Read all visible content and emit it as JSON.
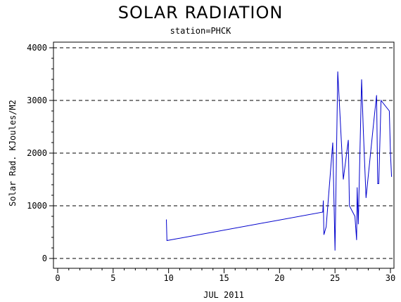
{
  "chart_data": {
    "type": "line",
    "title": "SOLAR RADIATION",
    "subtitle": "station=PHCK",
    "xlabel": "JUL 2011",
    "ylabel": "Solar Rad. KJoules/M2",
    "xlim": [
      0,
      30
    ],
    "ylim": [
      0,
      4000
    ],
    "x_ticks": [
      0,
      5,
      10,
      15,
      20,
      25,
      30
    ],
    "y_ticks": [
      0,
      1000,
      2000,
      3000,
      4000
    ],
    "y_tick_labels": [
      "0",
      "1000",
      "2000",
      "3000",
      "4000"
    ],
    "grid": "horizontal dashed",
    "series": [
      {
        "color": "#0000cc",
        "x": [
          9.8,
          9.85,
          23.9,
          23.95,
          24.0,
          24.2,
          24.8,
          25.0,
          25.25,
          25.75,
          26.2,
          26.3,
          26.8,
          26.95,
          27.0,
          27.1,
          27.4,
          27.55,
          27.8,
          28.5,
          28.75,
          28.85,
          28.95,
          29.15,
          29.9,
          30.0,
          30.1
        ],
        "y": [
          740,
          340,
          880,
          1100,
          450,
          600,
          2200,
          150,
          3550,
          1500,
          2250,
          1000,
          800,
          350,
          1350,
          650,
          3400,
          2450,
          1150,
          2600,
          3100,
          1420,
          1420,
          3000,
          2800,
          2000,
          1550
        ]
      }
    ]
  }
}
